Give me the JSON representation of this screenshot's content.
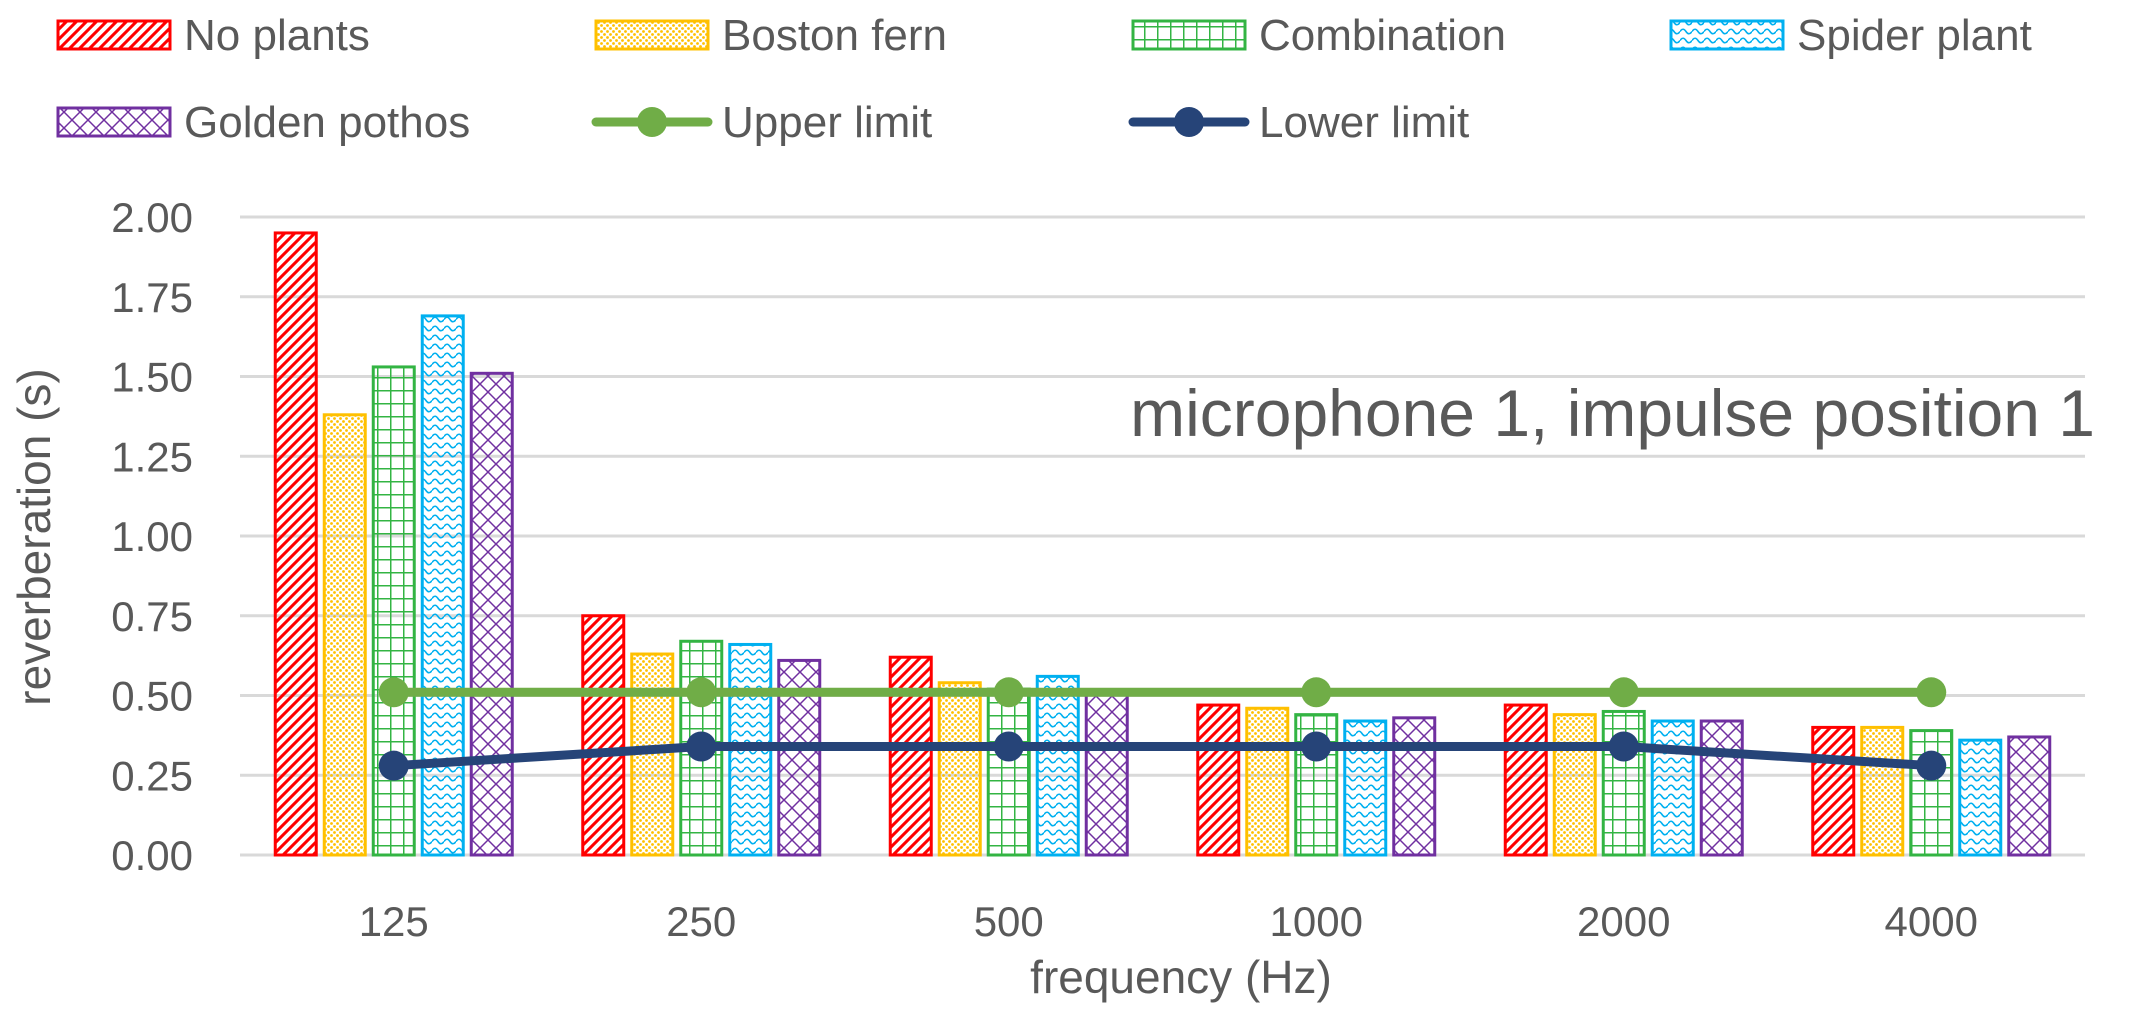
{
  "chart_data": {
    "type": "bar",
    "annotation": "microphone 1, impulse position 1",
    "xlabel": "frequency (Hz)",
    "ylabel": "reverberation (s)",
    "ylim": [
      0,
      2.0
    ],
    "yticks": [
      "0.00",
      "0.25",
      "0.50",
      "0.75",
      "1.00",
      "1.25",
      "1.50",
      "1.75",
      "2.00"
    ],
    "grid": true,
    "legend_position": "top",
    "categories": [
      "125",
      "250",
      "500",
      "1000",
      "2000",
      "4000"
    ],
    "series": [
      {
        "name": "No plants",
        "kind": "bar",
        "color": "#FF0000",
        "pattern": "diagonal-hatch",
        "values": [
          1.95,
          0.75,
          0.62,
          0.47,
          0.47,
          0.4
        ]
      },
      {
        "name": "Boston fern",
        "kind": "bar",
        "color": "#FFC000",
        "pattern": "dots",
        "values": [
          1.38,
          0.63,
          0.54,
          0.46,
          0.44,
          0.4
        ]
      },
      {
        "name": "Combination",
        "kind": "bar",
        "color": "#33B443",
        "pattern": "grid",
        "values": [
          1.53,
          0.67,
          0.52,
          0.44,
          0.45,
          0.39
        ]
      },
      {
        "name": "Spider plant",
        "kind": "bar",
        "color": "#00B0F0",
        "pattern": "wave",
        "values": [
          1.69,
          0.66,
          0.56,
          0.42,
          0.42,
          0.36
        ]
      },
      {
        "name": "Golden pothos",
        "kind": "bar",
        "color": "#7030A0",
        "pattern": "diamond",
        "values": [
          1.51,
          0.61,
          0.51,
          0.43,
          0.42,
          0.37
        ]
      },
      {
        "name": "Upper limit",
        "kind": "line",
        "color": "#70AD47",
        "values": [
          0.51,
          0.51,
          0.51,
          0.51,
          0.51,
          0.51
        ]
      },
      {
        "name": "Lower limit",
        "kind": "line",
        "color": "#264478",
        "values": [
          0.28,
          0.34,
          0.34,
          0.34,
          0.34,
          0.28
        ]
      }
    ]
  }
}
